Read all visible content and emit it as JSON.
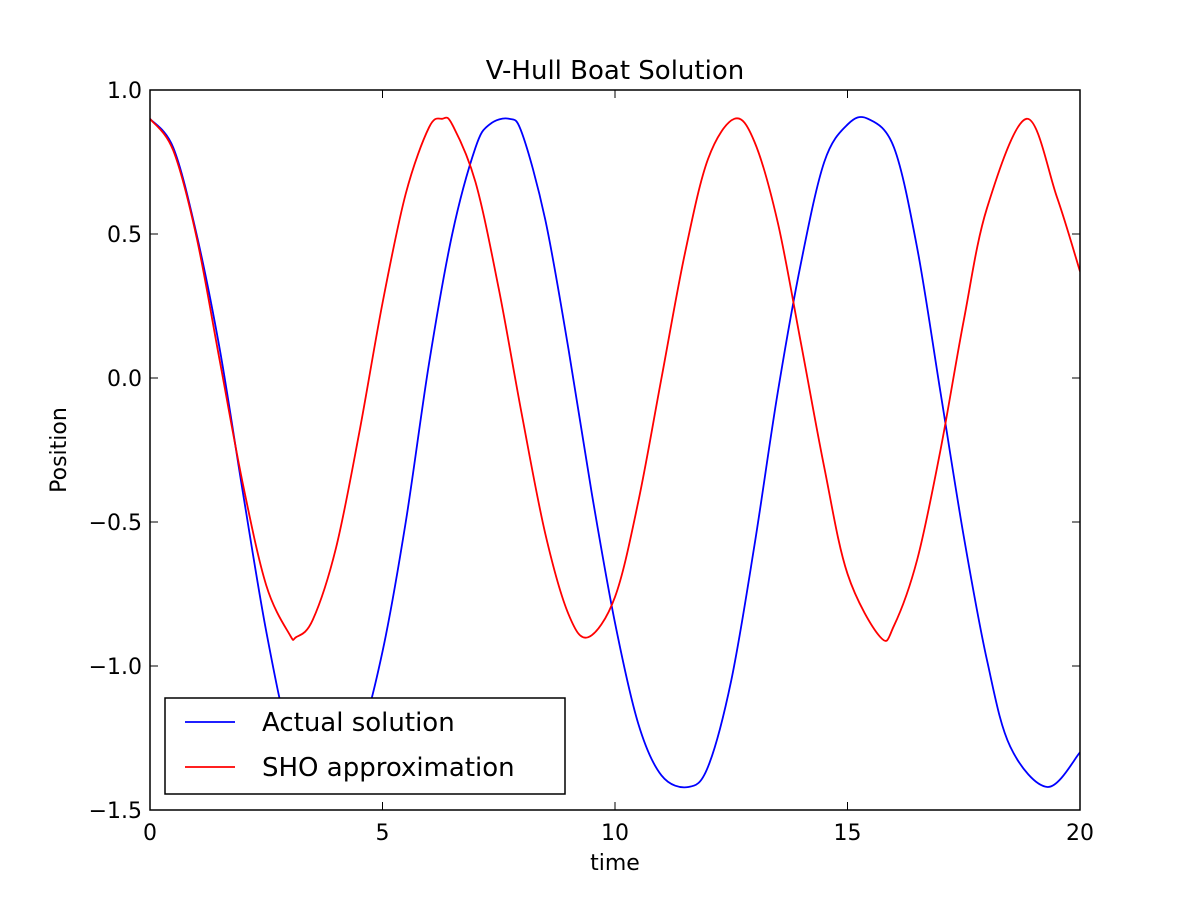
{
  "chart_data": {
    "type": "line",
    "title": "V-Hull Boat Solution",
    "xlabel": "time",
    "ylabel": "Position",
    "xlim": [
      0,
      20
    ],
    "ylim": [
      -1.5,
      1.0
    ],
    "xticks": [
      0,
      5,
      10,
      15,
      20
    ],
    "xtick_labels": [
      "0",
      "5",
      "10",
      "15",
      "20"
    ],
    "yticks": [
      1.0,
      0.5,
      0.0,
      -0.5,
      -1.0,
      -1.5
    ],
    "ytick_labels": [
      "1.0",
      "0.5",
      "0.0",
      "−0.5",
      "−1.0",
      "−1.5"
    ],
    "grid": false,
    "legend_position": "lower-left",
    "series": [
      {
        "name": "Actual solution",
        "color": "#0000ff",
        "x": [
          0,
          0.5,
          1,
          1.5,
          2,
          2.5,
          3,
          3.5,
          3.86,
          4.5,
          5,
          5.5,
          6,
          6.5,
          7,
          7.3,
          7.72,
          8,
          8.5,
          9,
          9.5,
          10,
          10.5,
          11,
          11.58,
          12,
          12.5,
          13,
          13.5,
          14,
          14.5,
          15,
          15.44,
          16,
          16.5,
          17,
          17.5,
          18,
          18.5,
          19.3,
          20
        ],
        "y": [
          0.9,
          0.8,
          0.5,
          0.1,
          -0.4,
          -0.88,
          -1.25,
          -1.4,
          -1.42,
          -1.25,
          -0.95,
          -0.5,
          0.05,
          0.5,
          0.8,
          0.88,
          0.9,
          0.85,
          0.55,
          0.1,
          -0.4,
          -0.85,
          -1.2,
          -1.38,
          -1.42,
          -1.35,
          -1.05,
          -0.58,
          -0.05,
          0.4,
          0.75,
          0.88,
          0.9,
          0.8,
          0.45,
          -0.05,
          -0.55,
          -0.98,
          -1.28,
          -1.42,
          -1.3
        ]
      },
      {
        "name": "SHO approximation",
        "color": "#ff0000",
        "x": [
          0,
          0.5,
          1,
          1.5,
          2,
          2.5,
          3,
          3.1416,
          3.5,
          4,
          4.5,
          5,
          5.5,
          6,
          6.2832,
          6.5,
          7,
          7.5,
          8,
          8.5,
          9,
          9.4248,
          10,
          10.5,
          11,
          11.5,
          12,
          12.5664,
          13,
          13.5,
          14,
          14.5,
          15,
          15.708,
          16,
          16.5,
          17,
          17.5,
          18,
          18.8496,
          19.5,
          20
        ],
        "y": [
          0.9,
          0.79,
          0.49,
          0.06,
          -0.37,
          -0.72,
          -0.89,
          -0.9,
          -0.84,
          -0.59,
          -0.19,
          0.26,
          0.64,
          0.87,
          0.9,
          0.88,
          0.68,
          0.31,
          -0.13,
          -0.54,
          -0.82,
          -0.9,
          -0.76,
          -0.43,
          0.0,
          0.43,
          0.76,
          0.9,
          0.82,
          0.54,
          0.12,
          -0.31,
          -0.68,
          -0.9,
          -0.86,
          -0.63,
          -0.25,
          0.2,
          0.59,
          0.9,
          0.63,
          0.37
        ]
      }
    ]
  }
}
